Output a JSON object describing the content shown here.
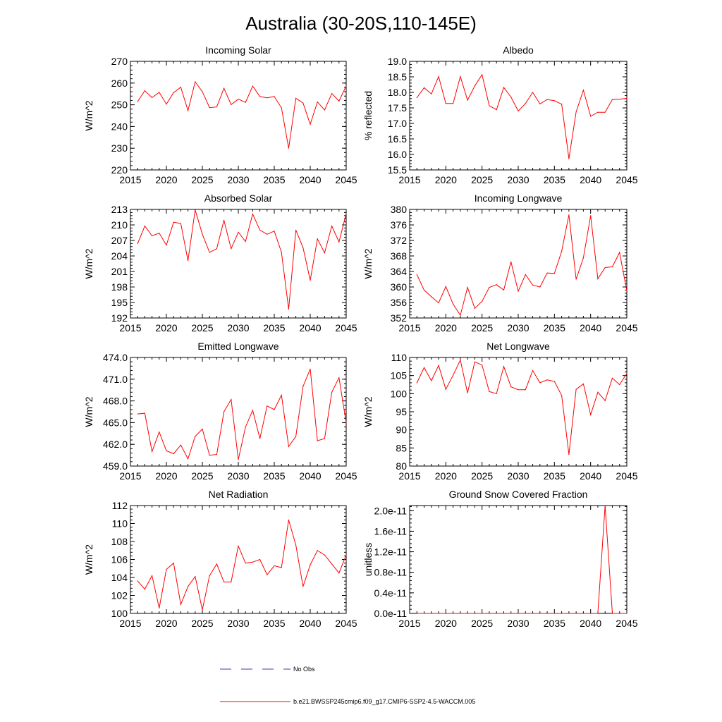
{
  "figure": {
    "title": "Australia (30-20S,110-145E)",
    "colors": {
      "model": "#ff0000",
      "obs": "#3b3bb5"
    }
  },
  "legend": {
    "placement": "bottom-center",
    "items": [
      {
        "label": "No Obs",
        "style": "dashed",
        "color": "#3b3bb5"
      },
      {
        "label": "b.e21.BWSSP245cmip6.f09_g17.CMIP6-SSP2-4.5-WACCM.005",
        "style": "solid",
        "color": "#ff0000"
      }
    ]
  },
  "chart_data": [
    {
      "type": "line",
      "title": "Incoming Solar",
      "ylabel": "W/m^2",
      "xlim": [
        2015,
        2045
      ],
      "ylim": [
        220,
        270
      ],
      "xticks": [
        2015,
        2020,
        2025,
        2030,
        2035,
        2040,
        2045
      ],
      "yticks": [
        "220",
        "230",
        "240",
        "250",
        "260",
        "270"
      ],
      "x": [
        2016,
        2017,
        2018,
        2019,
        2020,
        2021,
        2022,
        2023,
        2024,
        2025,
        2026,
        2027,
        2028,
        2029,
        2030,
        2031,
        2032,
        2033,
        2034,
        2035,
        2036,
        2037,
        2038,
        2039,
        2040,
        2041,
        2042,
        2043,
        2044,
        2045
      ],
      "series": [
        {
          "values": [
            251.5,
            256.5,
            253.3,
            255.7,
            250.3,
            255.6,
            258.1,
            247.3,
            260.6,
            256.0,
            248.7,
            249.0,
            257.6,
            250.1,
            252.6,
            251.1,
            258.6,
            253.8,
            253.2,
            253.8,
            248.6,
            230.0,
            253.0,
            250.8,
            241.0,
            251.3,
            247.6,
            255.2,
            251.7,
            258.7
          ]
        }
      ]
    },
    {
      "type": "line",
      "title": "Albedo",
      "ylabel": "% reflected",
      "xlim": [
        2015,
        2045
      ],
      "ylim": [
        15.5,
        19.0
      ],
      "xticks": [
        2015,
        2020,
        2025,
        2030,
        2035,
        2040,
        2045
      ],
      "yticks": [
        "15.5",
        "16.0",
        "16.5",
        "17.0",
        "17.5",
        "18.0",
        "18.5",
        "19.0"
      ],
      "x": [
        2016,
        2017,
        2018,
        2019,
        2020,
        2021,
        2022,
        2023,
        2024,
        2025,
        2026,
        2027,
        2028,
        2029,
        2030,
        2031,
        2032,
        2033,
        2034,
        2035,
        2036,
        2037,
        2038,
        2039,
        2040,
        2041,
        2042,
        2043,
        2044,
        2045
      ],
      "series": [
        {
          "values": [
            17.83,
            18.15,
            17.95,
            18.51,
            17.64,
            17.64,
            18.51,
            17.75,
            18.21,
            18.57,
            17.57,
            17.44,
            18.16,
            17.85,
            17.4,
            17.64,
            18.0,
            17.63,
            17.77,
            17.73,
            17.62,
            15.86,
            17.37,
            18.07,
            17.23,
            17.36,
            17.36,
            17.77,
            17.78,
            17.81
          ]
        }
      ]
    },
    {
      "type": "line",
      "title": "Absorbed Solar",
      "ylabel": "W/m^2",
      "xlim": [
        2015,
        2045
      ],
      "ylim": [
        192,
        213
      ],
      "xticks": [
        2015,
        2020,
        2025,
        2030,
        2035,
        2040,
        2045
      ],
      "yticks": [
        "192",
        "195",
        "198",
        "201",
        "204",
        "207",
        "210",
        "213"
      ],
      "x": [
        2016,
        2017,
        2018,
        2019,
        2020,
        2021,
        2022,
        2023,
        2024,
        2025,
        2026,
        2027,
        2028,
        2029,
        2030,
        2031,
        2032,
        2033,
        2034,
        2035,
        2036,
        2037,
        2038,
        2039,
        2040,
        2041,
        2042,
        2043,
        2044,
        2045
      ],
      "series": [
        {
          "values": [
            206.4,
            209.8,
            207.9,
            208.4,
            206.1,
            210.5,
            210.3,
            203.1,
            212.9,
            208.2,
            204.7,
            205.4,
            210.9,
            205.4,
            208.6,
            206.8,
            212.1,
            209.0,
            208.2,
            208.8,
            204.7,
            193.7,
            209.0,
            205.6,
            199.3,
            207.3,
            204.6,
            209.8,
            206.7,
            212.2
          ]
        }
      ]
    },
    {
      "type": "line",
      "title": "Incoming Longwave",
      "ylabel": "W/m^2",
      "xlim": [
        2015,
        2045
      ],
      "ylim": [
        352,
        380
      ],
      "xticks": [
        2015,
        2020,
        2025,
        2030,
        2035,
        2040,
        2045
      ],
      "yticks": [
        "352",
        "356",
        "360",
        "364",
        "368",
        "372",
        "376",
        "380"
      ],
      "x": [
        2016,
        2017,
        2018,
        2019,
        2020,
        2021,
        2022,
        2023,
        2024,
        2025,
        2026,
        2027,
        2028,
        2029,
        2030,
        2031,
        2032,
        2033,
        2034,
        2035,
        2036,
        2037,
        2038,
        2039,
        2040,
        2041,
        2042,
        2043,
        2044,
        2045
      ],
      "series": [
        {
          "values": [
            363.2,
            359.2,
            357.5,
            355.9,
            360.1,
            355.6,
            352.7,
            359.9,
            354.5,
            356.3,
            359.9,
            360.6,
            359.2,
            366.5,
            358.9,
            363.2,
            360.5,
            360.0,
            363.6,
            363.5,
            369.2,
            378.6,
            362.0,
            367.5,
            378.4,
            362.1,
            365.0,
            365.2,
            368.9,
            359.0
          ]
        }
      ]
    },
    {
      "type": "line",
      "title": "Emitted Longwave",
      "ylabel": "W/m^2",
      "xlim": [
        2015,
        2045
      ],
      "ylim": [
        459.0,
        474.0
      ],
      "xticks": [
        2015,
        2020,
        2025,
        2030,
        2035,
        2040,
        2045
      ],
      "yticks": [
        "459.0",
        "462.0",
        "465.0",
        "468.0",
        "471.0",
        "474.0"
      ],
      "x": [
        2016,
        2017,
        2018,
        2019,
        2020,
        2021,
        2022,
        2023,
        2024,
        2025,
        2026,
        2027,
        2028,
        2029,
        2030,
        2031,
        2032,
        2033,
        2034,
        2035,
        2036,
        2037,
        2038,
        2039,
        2040,
        2041,
        2042,
        2043,
        2044,
        2045
      ],
      "series": [
        {
          "values": [
            466.2,
            466.3,
            461.0,
            463.7,
            461.1,
            460.7,
            461.9,
            460.0,
            463.1,
            464.1,
            460.5,
            460.6,
            466.5,
            468.2,
            459.9,
            464.4,
            466.7,
            462.8,
            467.3,
            466.8,
            468.8,
            461.7,
            463.1,
            470.0,
            472.4,
            462.5,
            462.8,
            469.2,
            471.2,
            465.0
          ]
        }
      ]
    },
    {
      "type": "line",
      "title": "Net Longwave",
      "ylabel": "W/m^2",
      "xlim": [
        2015,
        2045
      ],
      "ylim": [
        80,
        110
      ],
      "xticks": [
        2015,
        2020,
        2025,
        2030,
        2035,
        2040,
        2045
      ],
      "yticks": [
        "80",
        "85",
        "90",
        "95",
        "100",
        "105",
        "110"
      ],
      "x": [
        2016,
        2017,
        2018,
        2019,
        2020,
        2021,
        2022,
        2023,
        2024,
        2025,
        2026,
        2027,
        2028,
        2029,
        2030,
        2031,
        2032,
        2033,
        2034,
        2035,
        2036,
        2037,
        2038,
        2039,
        2040,
        2041,
        2042,
        2043,
        2044,
        2045
      ],
      "series": [
        {
          "values": [
            103.0,
            107.2,
            103.6,
            107.8,
            101.2,
            105.1,
            109.3,
            100.2,
            108.8,
            107.9,
            100.6,
            100.0,
            107.5,
            101.9,
            101.1,
            101.1,
            106.4,
            103.0,
            103.8,
            103.4,
            99.5,
            83.2,
            101.2,
            102.7,
            94.2,
            100.4,
            98.1,
            104.3,
            102.5,
            105.6
          ]
        }
      ]
    },
    {
      "type": "line",
      "title": "Net Radiation",
      "ylabel": "W/m^2",
      "xlim": [
        2015,
        2045
      ],
      "ylim": [
        100,
        112
      ],
      "xticks": [
        2015,
        2020,
        2025,
        2030,
        2035,
        2040,
        2045
      ],
      "yticks": [
        "100",
        "102",
        "104",
        "106",
        "108",
        "110",
        "112"
      ],
      "x": [
        2016,
        2017,
        2018,
        2019,
        2020,
        2021,
        2022,
        2023,
        2024,
        2025,
        2026,
        2027,
        2028,
        2029,
        2030,
        2031,
        2032,
        2033,
        2034,
        2035,
        2036,
        2037,
        2038,
        2039,
        2040,
        2041,
        2042,
        2043,
        2044,
        2045
      ],
      "series": [
        {
          "values": [
            103.6,
            102.7,
            104.2,
            100.6,
            104.9,
            105.6,
            101.0,
            103.0,
            104.1,
            100.4,
            104.2,
            105.5,
            103.5,
            103.5,
            107.5,
            105.6,
            105.7,
            106.0,
            104.3,
            105.3,
            105.1,
            110.4,
            107.6,
            103.0,
            105.4,
            107.0,
            106.5,
            105.5,
            104.5,
            106.5
          ]
        }
      ]
    },
    {
      "type": "line",
      "title": "Ground Snow Covered Fraction",
      "ylabel": "unitless",
      "xlim": [
        2015,
        2045
      ],
      "ylim": [
        0,
        2.1e-11
      ],
      "xticks": [
        2015,
        2020,
        2025,
        2030,
        2035,
        2040,
        2045
      ],
      "yticks": [
        "0.0e-11",
        "0.4e-11",
        "0.8e-11",
        "1.2e-11",
        "1.6e-11",
        "2.0e-11"
      ],
      "x": [
        2016,
        2017,
        2018,
        2019,
        2020,
        2021,
        2022,
        2023,
        2024,
        2025,
        2026,
        2027,
        2028,
        2029,
        2030,
        2031,
        2032,
        2033,
        2034,
        2035,
        2036,
        2037,
        2038,
        2039,
        2040,
        2041,
        2042,
        2043,
        2044,
        2045
      ],
      "series": [
        {
          "values": [
            0,
            0,
            0,
            0,
            0,
            0,
            0,
            0,
            0,
            0,
            0,
            0,
            0,
            0,
            0,
            0,
            0,
            0,
            0,
            0,
            0,
            0,
            0,
            0,
            0,
            0,
            2.1e-11,
            0,
            0,
            0
          ]
        }
      ]
    }
  ]
}
